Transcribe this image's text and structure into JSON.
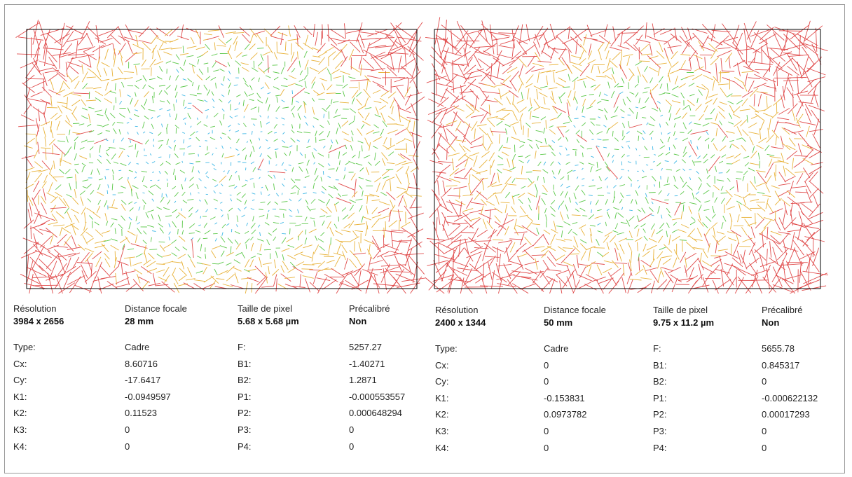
{
  "colors": {
    "frame": "#000000",
    "vector_low": "#3fb8e6",
    "vector_mid": "#5cc84a",
    "vector_high": "#e8b23a",
    "vector_max": "#e04a4a"
  },
  "cameras": [
    {
      "header": [
        {
          "label": "Résolution",
          "value": "3984 x 2656"
        },
        {
          "label": "Distance focale",
          "value": "28 mm"
        },
        {
          "label": "Taille de pixel",
          "value": "5.68 x 5.68 µm"
        },
        {
          "label": "Précalibré",
          "value": "Non"
        }
      ],
      "left_coeffs": [
        {
          "name": "Type:",
          "value": "Cadre"
        },
        {
          "name": "Cx:",
          "value": "8.60716"
        },
        {
          "name": "Cy:",
          "value": "-17.6417"
        },
        {
          "name": "K1:",
          "value": "-0.0949597"
        },
        {
          "name": "K2:",
          "value": "0.11523"
        },
        {
          "name": "K3:",
          "value": "0"
        },
        {
          "name": "K4:",
          "value": "0"
        }
      ],
      "right_coeffs": [
        {
          "name": "F:",
          "value": "5257.27"
        },
        {
          "name": "B1:",
          "value": "-1.40271"
        },
        {
          "name": "B2:",
          "value": "1.2871"
        },
        {
          "name": "P1:",
          "value": "-0.000553557"
        },
        {
          "name": "P2:",
          "value": "0.000648294"
        },
        {
          "name": "P3:",
          "value": "0"
        },
        {
          "name": "P4:",
          "value": "0"
        }
      ]
    },
    {
      "header": [
        {
          "label": "Résolution",
          "value": "2400 x 1344"
        },
        {
          "label": "Distance focale",
          "value": "50 mm"
        },
        {
          "label": "Taille de pixel",
          "value": "9.75 x 11.2 µm"
        },
        {
          "label": "Précalibré",
          "value": "Non"
        }
      ],
      "left_coeffs": [
        {
          "name": "Type:",
          "value": "Cadre"
        },
        {
          "name": "Cx:",
          "value": "0"
        },
        {
          "name": "Cy:",
          "value": "0"
        },
        {
          "name": "K1:",
          "value": "-0.153831"
        },
        {
          "name": "K2:",
          "value": "0.0973782"
        },
        {
          "name": "K3:",
          "value": "0"
        },
        {
          "name": "K4:",
          "value": "0"
        }
      ],
      "right_coeffs": [
        {
          "name": "F:",
          "value": "5655.78"
        },
        {
          "name": "B1:",
          "value": "0.845317"
        },
        {
          "name": "B2:",
          "value": "0"
        },
        {
          "name": "P1:",
          "value": "-0.000622132"
        },
        {
          "name": "P2:",
          "value": "0.00017293"
        },
        {
          "name": "P3:",
          "value": "0"
        },
        {
          "name": "P4:",
          "value": "0"
        }
      ]
    }
  ]
}
